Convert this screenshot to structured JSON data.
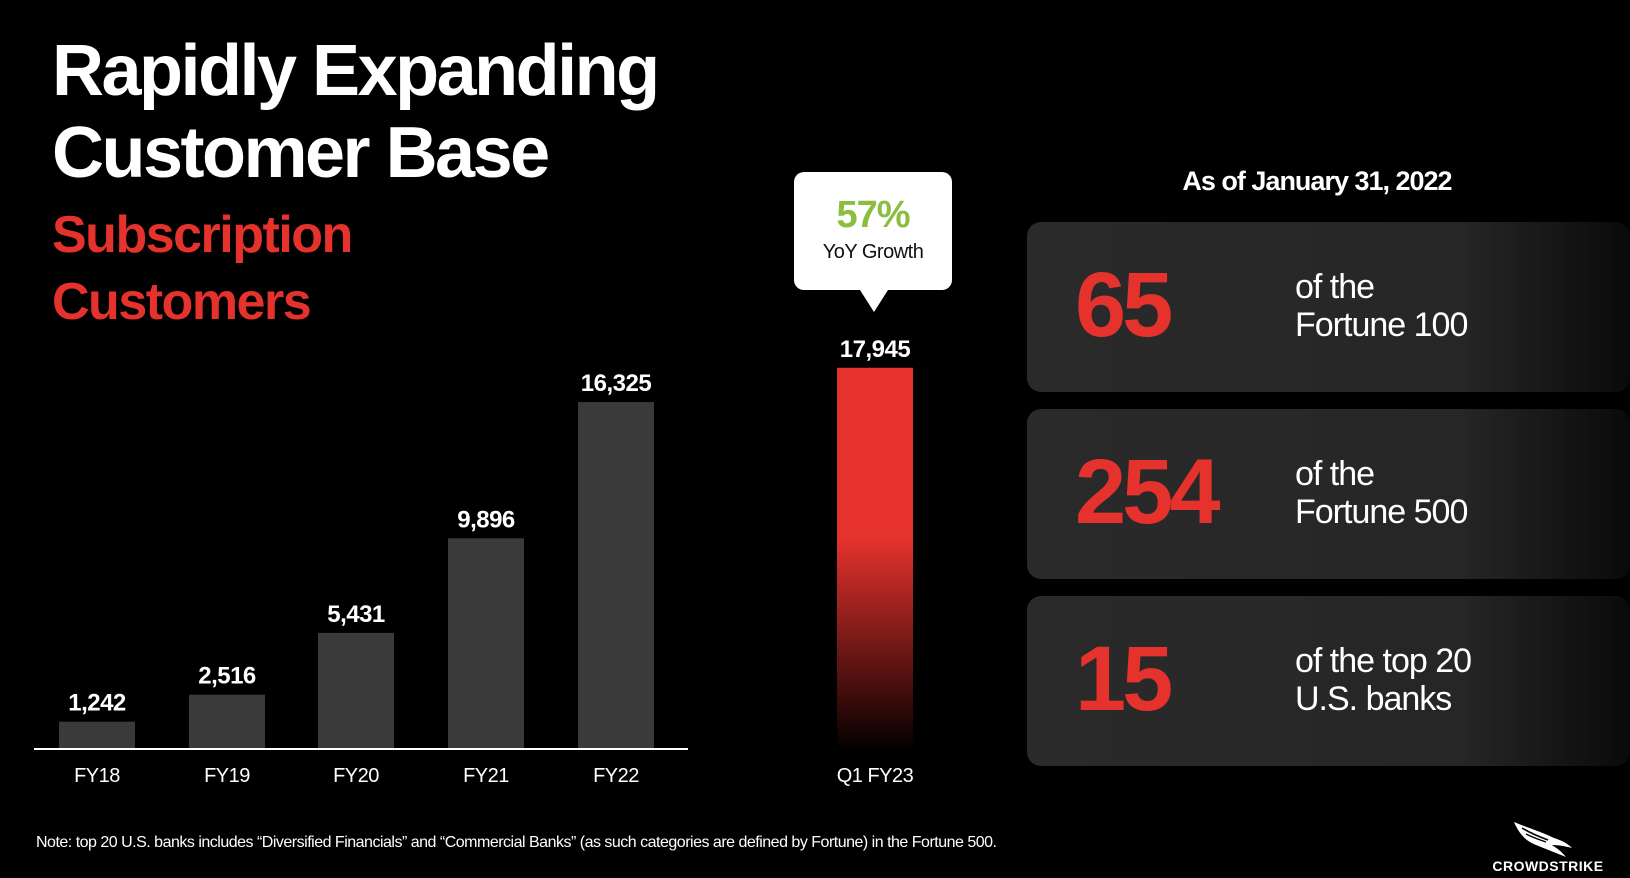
{
  "header": {
    "title_line1": "Rapidly Expanding",
    "title_line2": "Customer Base",
    "subtitle_line1": "Subscription",
    "subtitle_line2": "Customers"
  },
  "chart_data": {
    "type": "bar",
    "categories": [
      "FY18",
      "FY19",
      "FY20",
      "FY21",
      "FY22",
      "Q1 FY23"
    ],
    "values": [
      1242,
      2516,
      5431,
      9896,
      16325,
      17945
    ],
    "value_labels": [
      "1,242",
      "2,516",
      "5,431",
      "9,896",
      "16,325",
      "17,945"
    ],
    "ylim": [
      0,
      18500
    ],
    "grid": false,
    "colors": {
      "bar": "#3a3a3a",
      "highlight": "#e5322d"
    },
    "highlight_category": "Q1 FY23",
    "annotation": {
      "value": "57%",
      "label": "YoY Growth"
    }
  },
  "stats": {
    "as_of": "As of January 31, 2022",
    "items": [
      {
        "number": "65",
        "line1": "of the",
        "line2": "Fortune 100"
      },
      {
        "number": "254",
        "line1": "of the",
        "line2": "Fortune 500"
      },
      {
        "number": "15",
        "line1": "of the top 20",
        "line2": "U.S. banks"
      }
    ]
  },
  "footer": {
    "note": "Note: top 20 U.S. banks includes “Diversified Financials” and “Commercial Banks” (as such categories are defined by Fortune) in the Fortune 500.",
    "logo_text": "CROWDSTRIKE",
    "logo_icon": "falcon-icon"
  }
}
